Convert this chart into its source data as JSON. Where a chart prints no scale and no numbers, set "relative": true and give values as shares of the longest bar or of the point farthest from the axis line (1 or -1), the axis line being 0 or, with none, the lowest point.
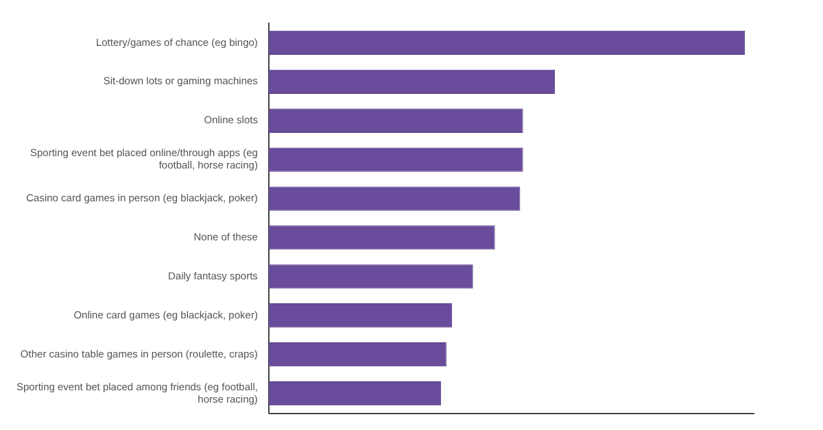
{
  "chart_data": {
    "type": "bar",
    "orientation": "horizontal",
    "relative": true,
    "color": "#6a4c9c",
    "categories": [
      "Lottery/games of chance (eg bingo)",
      "Sit-down lots or gaming machines",
      "Online slots",
      "Sporting event bet placed online/through apps (eg football, horse racing)",
      "Casino card games in person (eg blackjack, poker)",
      "None of these",
      "Daily fantasy sports",
      "Online card games (eg blackjack, poker)",
      "Other casino table games in person (roulette, craps)",
      "Sporting event bet placed among friends (eg football, horse racing)"
    ],
    "values": [
      1,
      0.601,
      0.534,
      0.534,
      0.528,
      0.475,
      0.429,
      0.385,
      0.373,
      0.362
    ],
    "grid": false,
    "legend": false
  }
}
